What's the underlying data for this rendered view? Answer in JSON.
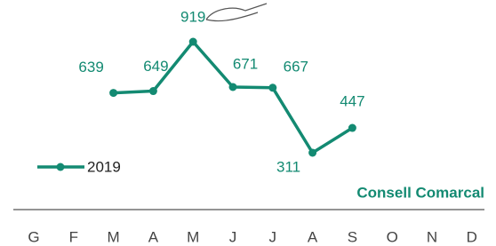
{
  "chart_data": {
    "type": "line",
    "categories": [
      "G",
      "F",
      "M",
      "A",
      "M",
      "J",
      "J",
      "A",
      "S",
      "O",
      "N",
      "D"
    ],
    "series": [
      {
        "name": "2019",
        "color": "#138a72",
        "values": [
          null,
          null,
          639,
          649,
          919,
          671,
          667,
          311,
          447,
          null,
          null,
          null
        ]
      }
    ],
    "annotation": "Consell Comarcal"
  }
}
